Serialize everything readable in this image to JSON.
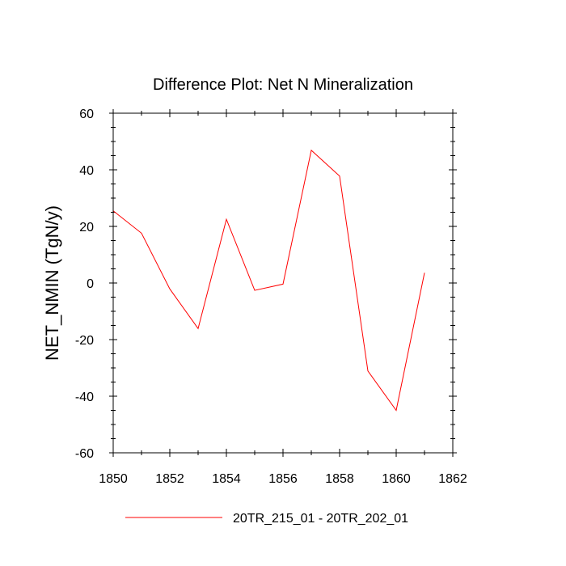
{
  "chart_data": {
    "type": "line",
    "title": "Difference Plot: Net N Mineralization",
    "xlabel": "",
    "ylabel": "NET_NMIN  (TgN/y)",
    "xlim": [
      1850,
      1862
    ],
    "ylim": [
      -60,
      60
    ],
    "x_ticks": [
      1850,
      1852,
      1854,
      1856,
      1858,
      1860,
      1862
    ],
    "y_ticks": [
      -60,
      -40,
      -20,
      0,
      20,
      40,
      60
    ],
    "grid": false,
    "legend_position": "bottom-center",
    "series": [
      {
        "name": "20TR_215_01 - 20TR_202_01",
        "color": "#ff0000",
        "x": [
          1850,
          1851,
          1852,
          1853,
          1854,
          1855,
          1856,
          1857,
          1858,
          1859,
          1860,
          1861
        ],
        "y": [
          25.5,
          17.6,
          -2.1,
          -16.1,
          22.5,
          -2.6,
          -0.4,
          46.9,
          37.8,
          -31.1,
          -45.0,
          3.6
        ]
      }
    ]
  }
}
